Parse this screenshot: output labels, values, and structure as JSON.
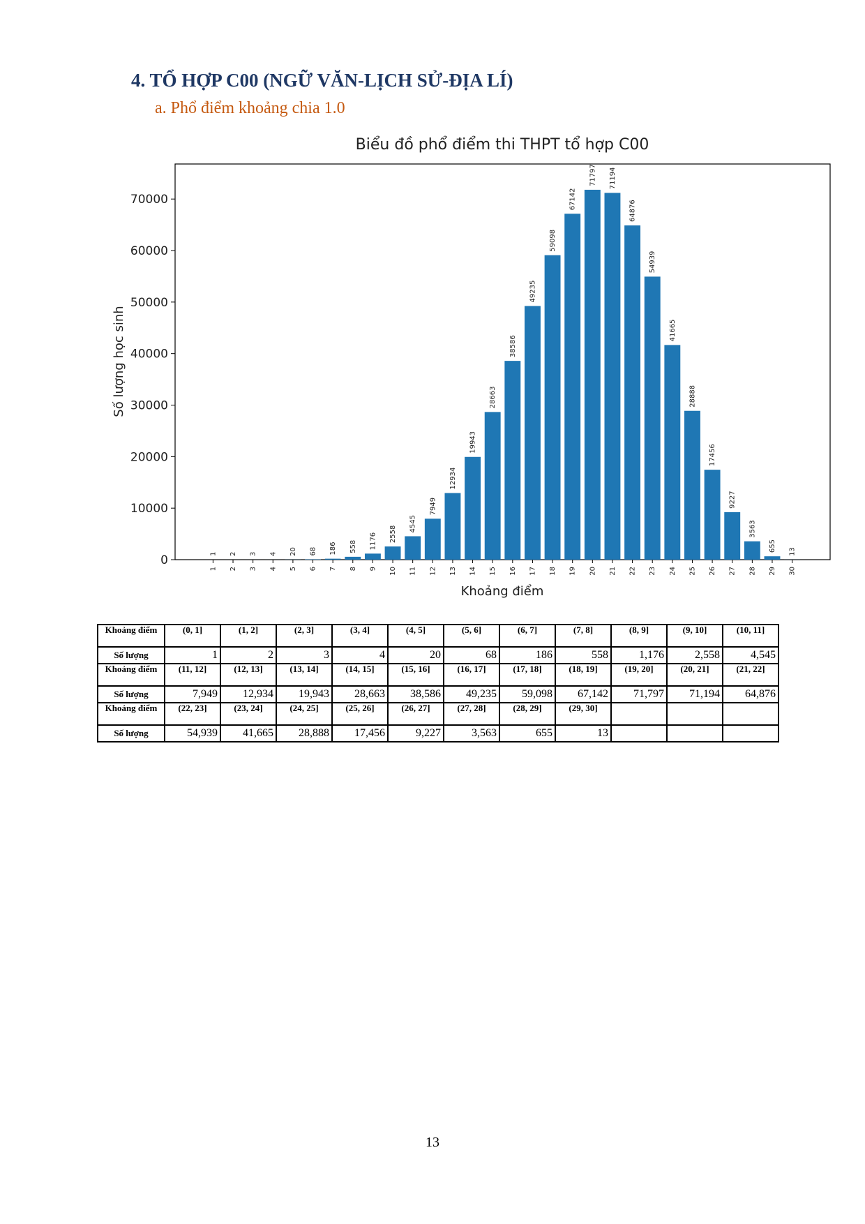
{
  "heading": "4. TỔ HỢP C00 (NGỮ VĂN-LỊCH SỬ-ĐỊA LÍ)",
  "subheading": "a. Phổ điểm khoảng chia 1.0",
  "chart_data": {
    "type": "bar",
    "title": "Biểu đồ phổ điểm thi THPT tổ hợp C00",
    "x_label": "Khoảng điểm",
    "y_label": "Số lượng học sinh",
    "x": [
      1,
      2,
      3,
      4,
      5,
      6,
      7,
      8,
      9,
      10,
      11,
      12,
      13,
      14,
      15,
      16,
      17,
      18,
      19,
      20,
      21,
      22,
      23,
      24,
      25,
      26,
      27,
      28,
      29,
      30
    ],
    "values": [
      1,
      2,
      3,
      4,
      20,
      68,
      186,
      558,
      1176,
      2558,
      4545,
      7949,
      12934,
      19943,
      28663,
      38586,
      49235,
      59098,
      67142,
      71797,
      71194,
      64876,
      54939,
      41665,
      28888,
      17456,
      9227,
      3563,
      655,
      13
    ],
    "color": "#1f77b4",
    "xlim": [
      -0.9,
      31.9
    ],
    "xticks": [
      1,
      2,
      3,
      4,
      5,
      6,
      7,
      8,
      9,
      10,
      11,
      12,
      13,
      14,
      15,
      16,
      17,
      18,
      19,
      20,
      21,
      22,
      23,
      24,
      25,
      26,
      27,
      28,
      29,
      30
    ],
    "ylim": [
      0,
      76800
    ],
    "yticks": [
      0,
      10000,
      20000,
      30000,
      40000,
      50000,
      60000,
      70000
    ]
  },
  "table": {
    "rows": [
      [
        "Khoảng điểm",
        "(0, 1]",
        "(1, 2]",
        "(2, 3]",
        "(3, 4]",
        "(4, 5]",
        "(5, 6]",
        "(6, 7]",
        "(7, 8]",
        "(8, 9]",
        "(9, 10]",
        "(10, 11]"
      ],
      [
        "Số lượng",
        "1",
        "2",
        "3",
        "4",
        "20",
        "68",
        "186",
        "558",
        "1,176",
        "2,558",
        "4,545"
      ],
      [
        "Khoảng điểm",
        "(11, 12]",
        "(12, 13]",
        "(13, 14]",
        "(14, 15]",
        "(15, 16]",
        "(16, 17]",
        "(17, 18]",
        "(18, 19]",
        "(19, 20]",
        "(20, 21]",
        "(21, 22]"
      ],
      [
        "Số lượng",
        "7,949",
        "12,934",
        "19,943",
        "28,663",
        "38,586",
        "49,235",
        "59,098",
        "67,142",
        "71,797",
        "71,194",
        "64,876"
      ],
      [
        "Khoảng điểm",
        "(22, 23]",
        "(23, 24]",
        "(24, 25]",
        "(25, 26]",
        "(26, 27]",
        "(27, 28]",
        "(28, 29]",
        "(29, 30]"
      ],
      [
        "Số lượng",
        "54,939",
        "41,665",
        "28,888",
        "17,456",
        "9,227",
        "3,563",
        "655",
        "13"
      ]
    ]
  },
  "page_number": "13"
}
